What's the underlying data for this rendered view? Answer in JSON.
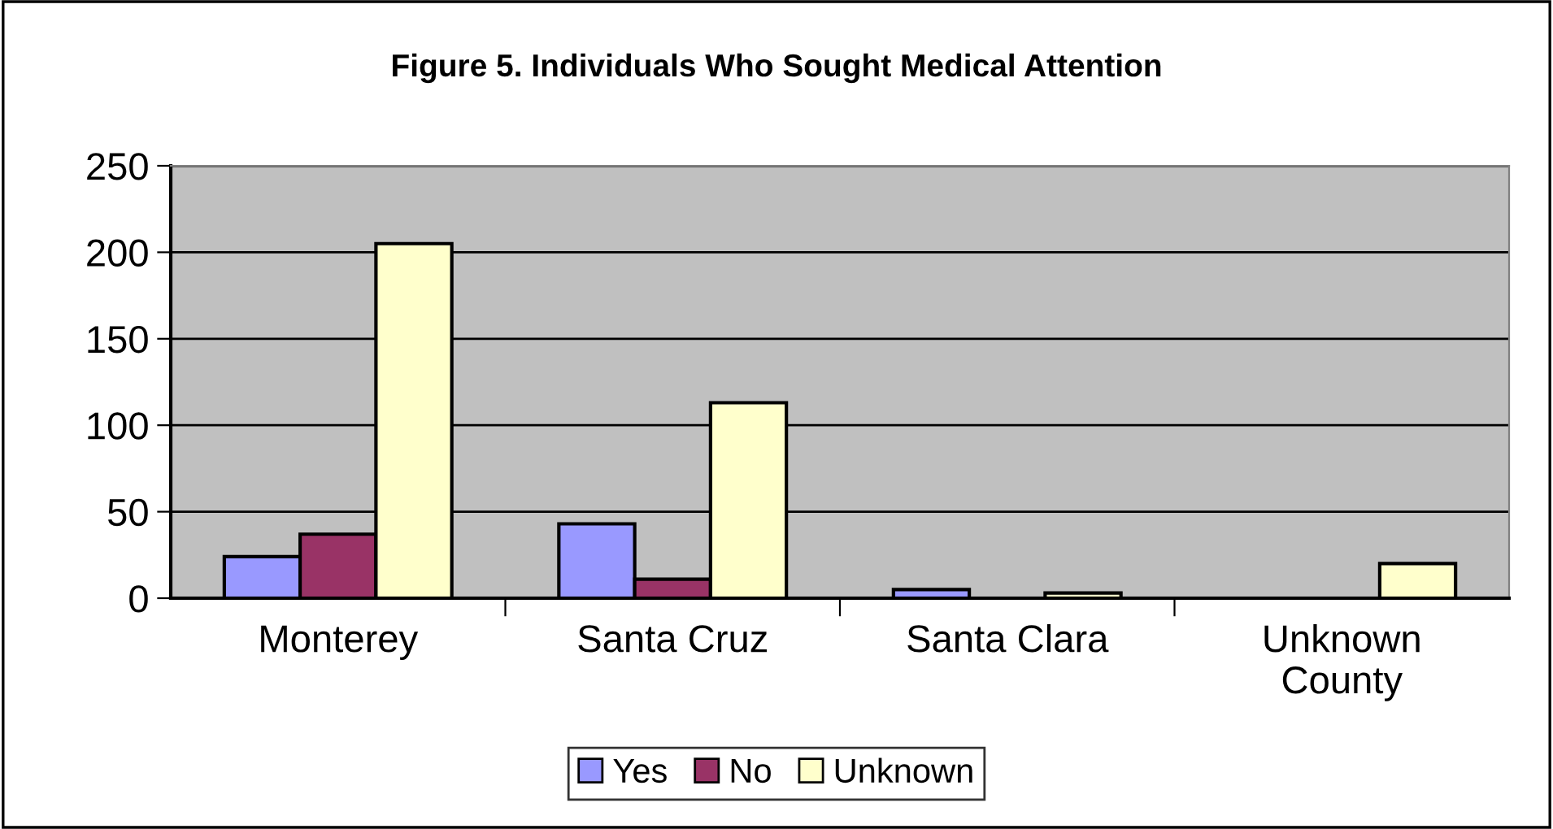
{
  "chart_data": {
    "type": "bar",
    "title": "Figure 5. Individuals Who Sought Medical Attention",
    "categories": [
      "Monterey",
      "Santa Cruz",
      "Santa Clara",
      "Unknown\nCounty"
    ],
    "series": [
      {
        "name": "Yes",
        "color": "#9999ff",
        "values": [
          24,
          43,
          5,
          0
        ]
      },
      {
        "name": "No",
        "color": "#993366",
        "values": [
          37,
          11,
          0,
          0
        ]
      },
      {
        "name": "Unknown",
        "color": "#ffffcc",
        "values": [
          205,
          113,
          3,
          20
        ]
      }
    ],
    "ylim": [
      0,
      250
    ],
    "yticks": [
      0,
      50,
      100,
      150,
      200,
      250
    ],
    "grid": "y",
    "legend": "bottom"
  }
}
